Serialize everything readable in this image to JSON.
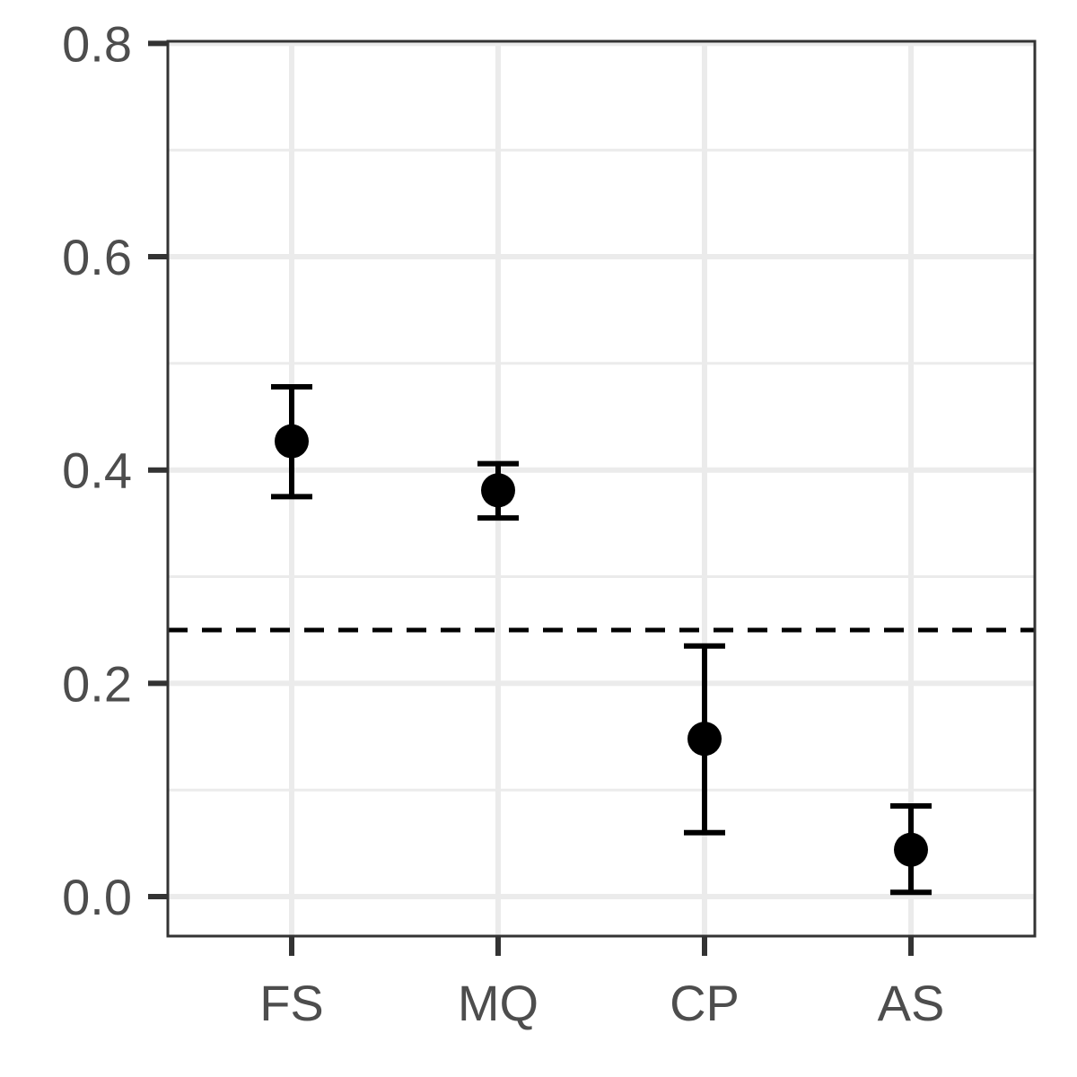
{
  "chart_data": {
    "type": "scatter",
    "categories": [
      "FS",
      "MQ",
      "CP",
      "AS"
    ],
    "values": [
      0.427,
      0.381,
      0.148,
      0.044
    ],
    "error_lower": [
      0.375,
      0.355,
      0.06,
      0.004
    ],
    "error_upper": [
      0.478,
      0.406,
      0.235,
      0.085
    ],
    "reference_line": 0.25,
    "ylim": [
      -0.037,
      0.802
    ],
    "yticks": [
      0.0,
      0.2,
      0.4,
      0.6,
      0.8
    ],
    "ytick_labels": [
      "0.0",
      "0.2",
      "0.4",
      "0.6",
      "0.8"
    ],
    "yminor": [
      0.1,
      0.3,
      0.5,
      0.7
    ],
    "title": "",
    "xlabel": "",
    "ylabel": "",
    "grid": true,
    "colors": {
      "point": "#000000",
      "grid": "#ebebeb",
      "panel_border": "#333333",
      "tick_text": "#4d4d4d"
    }
  }
}
